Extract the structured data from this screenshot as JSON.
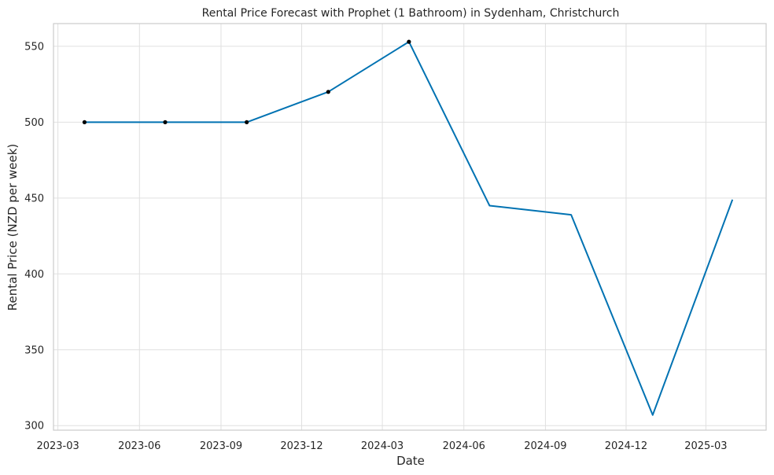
{
  "chart_data": {
    "type": "line",
    "title": "Rental Price Forecast with Prophet (1 Bathroom) in Sydenham, Christchurch",
    "xlabel": "Date",
    "ylabel": "Rental Price (NZD per week)",
    "xlim": [
      "2023-02-24",
      "2025-05-08"
    ],
    "ylim": [
      297,
      565
    ],
    "x_ticks": [
      "2023-03",
      "2023-06",
      "2023-09",
      "2023-12",
      "2024-03",
      "2024-06",
      "2024-09",
      "2024-12",
      "2025-03"
    ],
    "y_ticks": [
      300,
      350,
      400,
      450,
      500,
      550
    ],
    "grid": true,
    "series": [
      {
        "role": "forecast",
        "color": "#0072b2",
        "points": [
          {
            "x": "2023-03-31",
            "y": 500
          },
          {
            "x": "2023-06-30",
            "y": 500
          },
          {
            "x": "2023-09-30",
            "y": 500
          },
          {
            "x": "2023-12-31",
            "y": 520
          },
          {
            "x": "2024-03-31",
            "y": 553
          },
          {
            "x": "2024-06-30",
            "y": 445
          },
          {
            "x": "2024-09-30",
            "y": 439
          },
          {
            "x": "2024-12-31",
            "y": 307
          },
          {
            "x": "2025-03-31",
            "y": 449
          }
        ]
      },
      {
        "role": "observed",
        "color": "#000000",
        "points": [
          {
            "x": "2023-03-31",
            "y": 500
          },
          {
            "x": "2023-06-30",
            "y": 500
          },
          {
            "x": "2023-09-30",
            "y": 500
          },
          {
            "x": "2023-12-31",
            "y": 520
          },
          {
            "x": "2024-03-31",
            "y": 553
          }
        ]
      }
    ]
  }
}
